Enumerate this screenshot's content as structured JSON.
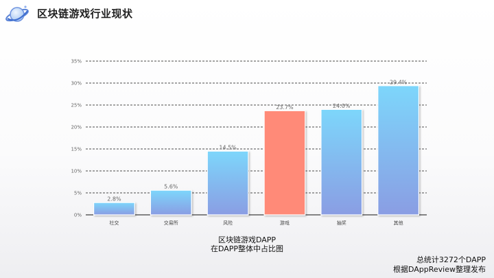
{
  "header": {
    "title": "区块链游戏行业现状",
    "logo_icon": "planet-ring-logo"
  },
  "colors": {
    "bar_top": "#7dd6fb",
    "bar_bottom": "#8a9de3",
    "highlight_bar": "#ff8a78",
    "gridline": "#111111"
  },
  "chart_data": {
    "type": "bar",
    "title": "",
    "xlabel": "",
    "ylabel": "",
    "categories": [
      "社交",
      "交易所",
      "风险",
      "游戏",
      "抽奖",
      "其他"
    ],
    "values": [
      2.8,
      5.6,
      14.5,
      23.7,
      24.0,
      29.4
    ],
    "data_labels": [
      "2.8%",
      "5.6%",
      "14.5%",
      "23.7%",
      "24.0%",
      "29.4%"
    ],
    "value_unit": "%",
    "highlight_category": "游戏",
    "ylim": [
      0,
      35
    ],
    "yticks": [
      0,
      5,
      10,
      15,
      20,
      25,
      30,
      35
    ],
    "ytick_labels": [
      "0%",
      "5%",
      "10%",
      "15%",
      "20%",
      "25%",
      "30%",
      "35%"
    ],
    "grid": true,
    "legend": "none"
  },
  "caption": {
    "line1": "区块链游戏DAPP",
    "line2": "在DAPP整体中占比图"
  },
  "footnote": {
    "line1": "总统计3272个DAPP",
    "line2": "根据DAppReview整理发布"
  }
}
